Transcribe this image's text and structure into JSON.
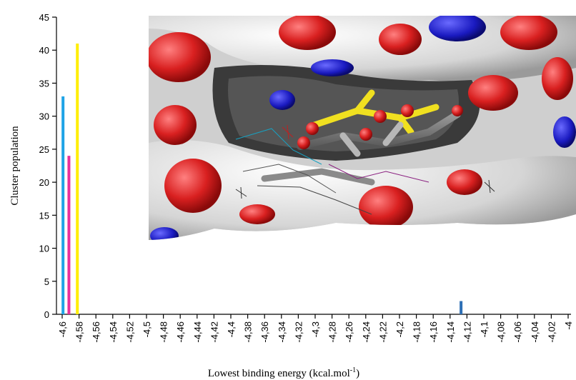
{
  "chart_data": {
    "type": "bar",
    "xlabel": "Lowest binding energy (kcal.mol",
    "xlabel_superscript": "-1",
    "xlabel_suffix": ")",
    "ylabel": "Cluster population",
    "ylim": [
      0,
      45
    ],
    "yticks": [
      0,
      5,
      10,
      15,
      20,
      25,
      30,
      35,
      40,
      45
    ],
    "xlim": [
      -4.6,
      -4.0
    ],
    "xticks": [
      "-4,6",
      "-4,58",
      "-4,56",
      "-4,54",
      "-4,52",
      "-4,5",
      "-4,48",
      "-4,46",
      "-4,44",
      "-4,42",
      "-4,4",
      "-4,38",
      "-4,36",
      "-4,34",
      "-4,32",
      "-4,3",
      "-4,28",
      "-4,26",
      "-4,24",
      "-4,22",
      "-4,2",
      "-4,18",
      "-4,16",
      "-4,14",
      "-4,12",
      "-4,1",
      "-4,08",
      "-4,06",
      "-4,04",
      "-4,02",
      "-4"
    ],
    "bars": [
      {
        "x": -4.599,
        "value": 33,
        "color": "#1fa3e6"
      },
      {
        "x": -4.592,
        "value": 24,
        "color": "#e8309a"
      },
      {
        "x": -4.582,
        "value": 41,
        "color": "#ffee00"
      },
      {
        "x": -4.127,
        "value": 2,
        "color": "#2d6fb5"
      }
    ],
    "grid": false,
    "inset": "molecular surface rendering of docked ligand poses"
  }
}
